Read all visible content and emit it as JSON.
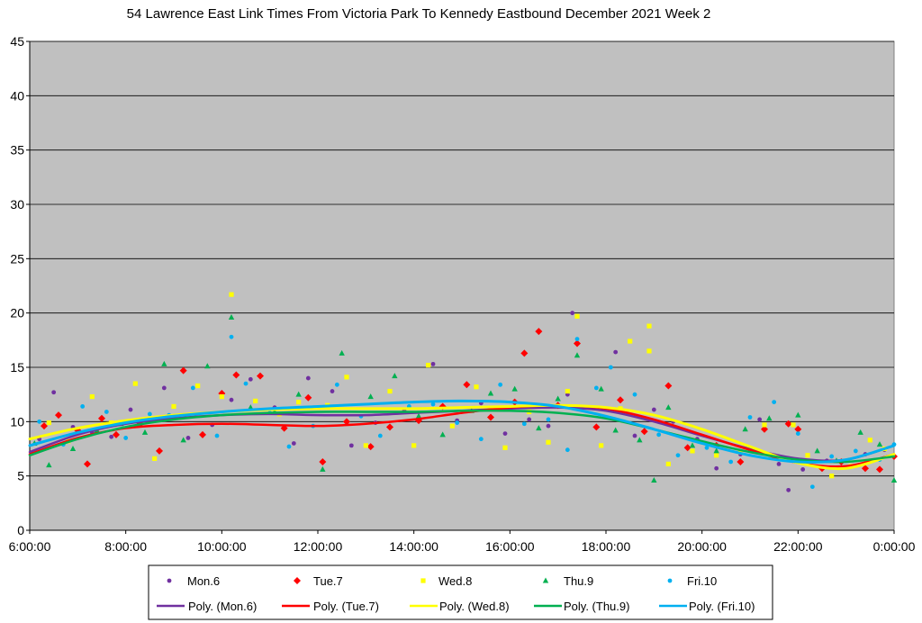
{
  "chart_data": {
    "type": "scatter",
    "title": "54 Lawrence East Link Times From Victoria Park To Kennedy Eastbound December 2021  Week 2",
    "xlabel": "",
    "ylabel": "",
    "x_ticks": [
      "6:00:00",
      "8:00:00",
      "10:00:00",
      "12:00:00",
      "14:00:00",
      "16:00:00",
      "18:00:00",
      "20:00:00",
      "22:00:00",
      "0:00:00"
    ],
    "xlim_hours": [
      6,
      24
    ],
    "y_ticks": [
      "0",
      "5",
      "10",
      "15",
      "20",
      "25",
      "30",
      "35",
      "40",
      "45"
    ],
    "ylim": [
      0,
      45
    ],
    "grid": true,
    "plot_background": "#c0c0c0",
    "legend_position": "bottom",
    "series": [
      {
        "name": "Mon.6",
        "marker": "circle",
        "color": "#7030a0",
        "trend_name": "Poly. (Mon.6)",
        "trend": [
          [
            6,
            7.2
          ],
          [
            7,
            8.8
          ],
          [
            8,
            9.8
          ],
          [
            9,
            10.3
          ],
          [
            10,
            10.6
          ],
          [
            11,
            10.7
          ],
          [
            12,
            10.6
          ],
          [
            13,
            10.6
          ],
          [
            14,
            10.8
          ],
          [
            15,
            11.0
          ],
          [
            16,
            11.2
          ],
          [
            17,
            11.3
          ],
          [
            18,
            11.0
          ],
          [
            19,
            10.0
          ],
          [
            20,
            8.7
          ],
          [
            21,
            7.5
          ],
          [
            22,
            6.6
          ],
          [
            23,
            6.5
          ],
          [
            24,
            7.8
          ]
        ],
        "points": [
          [
            6.2,
            8.4
          ],
          [
            6.5,
            12.7
          ],
          [
            6.9,
            9.5
          ],
          [
            7.3,
            9.0
          ],
          [
            7.7,
            8.6
          ],
          [
            8.1,
            11.1
          ],
          [
            8.6,
            10.3
          ],
          [
            8.8,
            13.1
          ],
          [
            9.3,
            8.5
          ],
          [
            9.8,
            9.7
          ],
          [
            10.2,
            12.0
          ],
          [
            10.6,
            13.9
          ],
          [
            11.1,
            11.3
          ],
          [
            11.5,
            8.0
          ],
          [
            11.8,
            14.0
          ],
          [
            12.3,
            12.8
          ],
          [
            12.7,
            7.8
          ],
          [
            13.2,
            9.9
          ],
          [
            13.8,
            11.0
          ],
          [
            14.4,
            15.3
          ],
          [
            14.9,
            10.1
          ],
          [
            15.4,
            11.7
          ],
          [
            15.9,
            8.9
          ],
          [
            16.4,
            10.2
          ],
          [
            16.8,
            9.6
          ],
          [
            17.2,
            12.5
          ],
          [
            17.3,
            20.0
          ],
          [
            17.7,
            11.3
          ],
          [
            18.2,
            16.4
          ],
          [
            18.6,
            8.7
          ],
          [
            19.0,
            11.1
          ],
          [
            19.4,
            10.0
          ],
          [
            19.9,
            8.4
          ],
          [
            20.3,
            5.7
          ],
          [
            20.8,
            7.0
          ],
          [
            21.2,
            10.2
          ],
          [
            21.6,
            6.1
          ],
          [
            21.8,
            3.7
          ],
          [
            22.1,
            5.6
          ],
          [
            22.6,
            6.4
          ],
          [
            23.0,
            5.8
          ],
          [
            23.4,
            7.0
          ],
          [
            23.8,
            7.4
          ]
        ]
      },
      {
        "name": "Tue.7",
        "marker": "diamond",
        "color": "#ff0000",
        "trend_name": "Poly. (Tue.7)",
        "trend": [
          [
            6,
            7.0
          ],
          [
            7,
            8.5
          ],
          [
            8,
            9.4
          ],
          [
            9,
            9.7
          ],
          [
            10,
            9.8
          ],
          [
            11,
            9.7
          ],
          [
            12,
            9.6
          ],
          [
            13,
            9.8
          ],
          [
            14,
            10.2
          ],
          [
            15,
            10.8
          ],
          [
            16,
            11.3
          ],
          [
            17,
            11.5
          ],
          [
            18,
            11.2
          ],
          [
            19,
            10.2
          ],
          [
            20,
            8.8
          ],
          [
            21,
            7.4
          ],
          [
            22,
            6.2
          ],
          [
            23,
            5.9
          ],
          [
            24,
            7.0
          ]
        ],
        "points": [
          [
            6.3,
            9.6
          ],
          [
            6.6,
            10.6
          ],
          [
            7.0,
            9.2
          ],
          [
            7.2,
            6.1
          ],
          [
            7.5,
            10.3
          ],
          [
            7.8,
            8.8
          ],
          [
            8.3,
            9.8
          ],
          [
            8.7,
            7.3
          ],
          [
            9.2,
            14.7
          ],
          [
            9.6,
            8.8
          ],
          [
            10.0,
            12.6
          ],
          [
            10.3,
            14.3
          ],
          [
            10.8,
            14.2
          ],
          [
            11.3,
            9.4
          ],
          [
            11.8,
            12.2
          ],
          [
            12.1,
            6.3
          ],
          [
            12.6,
            10.0
          ],
          [
            13.1,
            7.7
          ],
          [
            13.5,
            9.5
          ],
          [
            14.1,
            10.1
          ],
          [
            14.6,
            11.4
          ],
          [
            15.1,
            13.4
          ],
          [
            15.6,
            10.4
          ],
          [
            16.1,
            11.8
          ],
          [
            16.3,
            16.3
          ],
          [
            16.6,
            18.3
          ],
          [
            17.0,
            11.5
          ],
          [
            17.4,
            17.2
          ],
          [
            17.8,
            9.5
          ],
          [
            18.3,
            12.0
          ],
          [
            18.8,
            9.1
          ],
          [
            19.3,
            13.3
          ],
          [
            19.7,
            7.6
          ],
          [
            20.3,
            7.8
          ],
          [
            20.8,
            6.3
          ],
          [
            21.3,
            9.3
          ],
          [
            21.8,
            9.8
          ],
          [
            22.0,
            9.3
          ],
          [
            22.5,
            5.7
          ],
          [
            22.9,
            6.3
          ],
          [
            23.4,
            5.7
          ],
          [
            23.7,
            5.6
          ],
          [
            24.0,
            6.8
          ]
        ]
      },
      {
        "name": "Wed.8",
        "marker": "square",
        "color": "#ffff00",
        "trend_name": "Poly. (Wed.8)",
        "trend": [
          [
            6,
            8.4
          ],
          [
            7,
            9.4
          ],
          [
            8,
            10.1
          ],
          [
            9,
            10.6
          ],
          [
            10,
            10.9
          ],
          [
            11,
            11.1
          ],
          [
            12,
            11.2
          ],
          [
            13,
            11.2
          ],
          [
            14,
            11.2
          ],
          [
            15,
            11.3
          ],
          [
            16,
            11.4
          ],
          [
            17,
            11.5
          ],
          [
            18,
            11.3
          ],
          [
            19,
            10.6
          ],
          [
            20,
            9.3
          ],
          [
            21,
            7.7
          ],
          [
            22,
            6.2
          ],
          [
            23,
            5.7
          ],
          [
            24,
            7.0
          ]
        ],
        "points": [
          [
            6.4,
            9.9
          ],
          [
            6.8,
            8.2
          ],
          [
            7.3,
            12.3
          ],
          [
            7.7,
            9.9
          ],
          [
            8.2,
            13.5
          ],
          [
            8.6,
            6.6
          ],
          [
            9.0,
            11.4
          ],
          [
            9.5,
            13.3
          ],
          [
            10.0,
            12.3
          ],
          [
            10.2,
            21.7
          ],
          [
            10.7,
            11.9
          ],
          [
            11.2,
            10.7
          ],
          [
            11.6,
            11.8
          ],
          [
            12.2,
            11.5
          ],
          [
            12.6,
            14.1
          ],
          [
            13.0,
            7.8
          ],
          [
            13.5,
            12.8
          ],
          [
            14.0,
            7.8
          ],
          [
            14.3,
            15.2
          ],
          [
            14.8,
            9.6
          ],
          [
            15.3,
            13.2
          ],
          [
            15.9,
            7.6
          ],
          [
            16.4,
            10.9
          ],
          [
            16.8,
            8.1
          ],
          [
            17.2,
            12.8
          ],
          [
            17.4,
            19.7
          ],
          [
            17.9,
            7.8
          ],
          [
            18.3,
            11.2
          ],
          [
            18.5,
            17.4
          ],
          [
            18.9,
            18.8
          ],
          [
            18.9,
            16.5
          ],
          [
            19.3,
            6.1
          ],
          [
            19.8,
            7.3
          ],
          [
            20.3,
            6.9
          ],
          [
            20.8,
            7.2
          ],
          [
            21.3,
            9.7
          ],
          [
            21.9,
            9.7
          ],
          [
            22.2,
            6.9
          ],
          [
            22.7,
            5.0
          ],
          [
            23.1,
            5.9
          ],
          [
            23.5,
            8.3
          ],
          [
            23.8,
            7.5
          ]
        ]
      },
      {
        "name": "Thu.9",
        "marker": "triangle",
        "color": "#00b050",
        "trend_name": "Poly. (Thu.9)",
        "trend": [
          [
            6,
            6.9
          ],
          [
            7,
            8.4
          ],
          [
            8,
            9.5
          ],
          [
            9,
            10.2
          ],
          [
            10,
            10.6
          ],
          [
            11,
            10.8
          ],
          [
            12,
            10.9
          ],
          [
            13,
            10.9
          ],
          [
            14,
            10.9
          ],
          [
            15,
            11.0
          ],
          [
            16,
            11.0
          ],
          [
            17,
            10.8
          ],
          [
            18,
            10.3
          ],
          [
            19,
            9.3
          ],
          [
            20,
            8.2
          ],
          [
            21,
            7.2
          ],
          [
            22,
            6.5
          ],
          [
            23,
            6.3
          ],
          [
            24,
            6.8
          ]
        ],
        "points": [
          [
            6.1,
            8.0
          ],
          [
            6.4,
            6.0
          ],
          [
            6.9,
            7.5
          ],
          [
            7.4,
            9.2
          ],
          [
            7.9,
            9.8
          ],
          [
            8.4,
            9.0
          ],
          [
            8.8,
            15.3
          ],
          [
            9.2,
            8.3
          ],
          [
            9.7,
            15.1
          ],
          [
            10.2,
            19.6
          ],
          [
            10.6,
            11.3
          ],
          [
            11.1,
            10.9
          ],
          [
            11.6,
            12.5
          ],
          [
            12.1,
            5.6
          ],
          [
            12.5,
            16.3
          ],
          [
            13.1,
            12.3
          ],
          [
            13.6,
            14.2
          ],
          [
            14.1,
            10.5
          ],
          [
            14.6,
            8.8
          ],
          [
            15.2,
            11.0
          ],
          [
            15.6,
            12.6
          ],
          [
            16.1,
            13.0
          ],
          [
            16.6,
            9.4
          ],
          [
            17.0,
            12.1
          ],
          [
            17.4,
            16.1
          ],
          [
            17.9,
            13.0
          ],
          [
            18.2,
            9.2
          ],
          [
            18.7,
            8.3
          ],
          [
            19.0,
            4.6
          ],
          [
            19.3,
            11.3
          ],
          [
            19.8,
            7.8
          ],
          [
            20.3,
            7.3
          ],
          [
            20.9,
            9.3
          ],
          [
            21.4,
            10.3
          ],
          [
            22.0,
            10.6
          ],
          [
            22.4,
            7.3
          ],
          [
            22.8,
            6.4
          ],
          [
            23.3,
            9.0
          ],
          [
            23.7,
            7.9
          ],
          [
            24.0,
            4.6
          ]
        ]
      },
      {
        "name": "Fri.10",
        "marker": "circle",
        "color": "#00b0f0",
        "trend_name": "Poly. (Fri.10)",
        "trend": [
          [
            6,
            7.8
          ],
          [
            7,
            9.0
          ],
          [
            8,
            9.9
          ],
          [
            9,
            10.5
          ],
          [
            10,
            10.9
          ],
          [
            11,
            11.2
          ],
          [
            12,
            11.4
          ],
          [
            13,
            11.6
          ],
          [
            14,
            11.8
          ],
          [
            15,
            11.9
          ],
          [
            16,
            11.8
          ],
          [
            17,
            11.4
          ],
          [
            18,
            10.5
          ],
          [
            19,
            9.3
          ],
          [
            20,
            8.0
          ],
          [
            21,
            6.9
          ],
          [
            22,
            6.3
          ],
          [
            23,
            6.5
          ],
          [
            24,
            7.8
          ]
        ],
        "points": [
          [
            6.2,
            10.0
          ],
          [
            6.7,
            7.9
          ],
          [
            7.1,
            11.4
          ],
          [
            7.6,
            10.9
          ],
          [
            8.0,
            8.5
          ],
          [
            8.5,
            10.7
          ],
          [
            8.9,
            10.6
          ],
          [
            9.4,
            13.1
          ],
          [
            9.9,
            8.7
          ],
          [
            10.2,
            17.8
          ],
          [
            10.5,
            13.5
          ],
          [
            11.0,
            10.8
          ],
          [
            11.4,
            7.7
          ],
          [
            11.9,
            9.6
          ],
          [
            12.4,
            13.4
          ],
          [
            12.9,
            10.5
          ],
          [
            13.3,
            8.7
          ],
          [
            13.9,
            11.4
          ],
          [
            14.4,
            11.6
          ],
          [
            14.9,
            9.9
          ],
          [
            15.4,
            8.4
          ],
          [
            15.8,
            13.4
          ],
          [
            16.3,
            9.8
          ],
          [
            16.8,
            10.2
          ],
          [
            17.2,
            7.4
          ],
          [
            17.4,
            17.6
          ],
          [
            17.8,
            13.1
          ],
          [
            18.1,
            15.0
          ],
          [
            18.6,
            12.5
          ],
          [
            19.1,
            8.8
          ],
          [
            19.5,
            6.9
          ],
          [
            20.1,
            7.6
          ],
          [
            20.6,
            6.3
          ],
          [
            21.0,
            10.4
          ],
          [
            21.5,
            11.8
          ],
          [
            22.0,
            8.9
          ],
          [
            22.3,
            4.0
          ],
          [
            22.7,
            6.8
          ],
          [
            23.2,
            7.3
          ],
          [
            23.7,
            6.5
          ],
          [
            24.0,
            7.9
          ]
        ]
      }
    ]
  }
}
